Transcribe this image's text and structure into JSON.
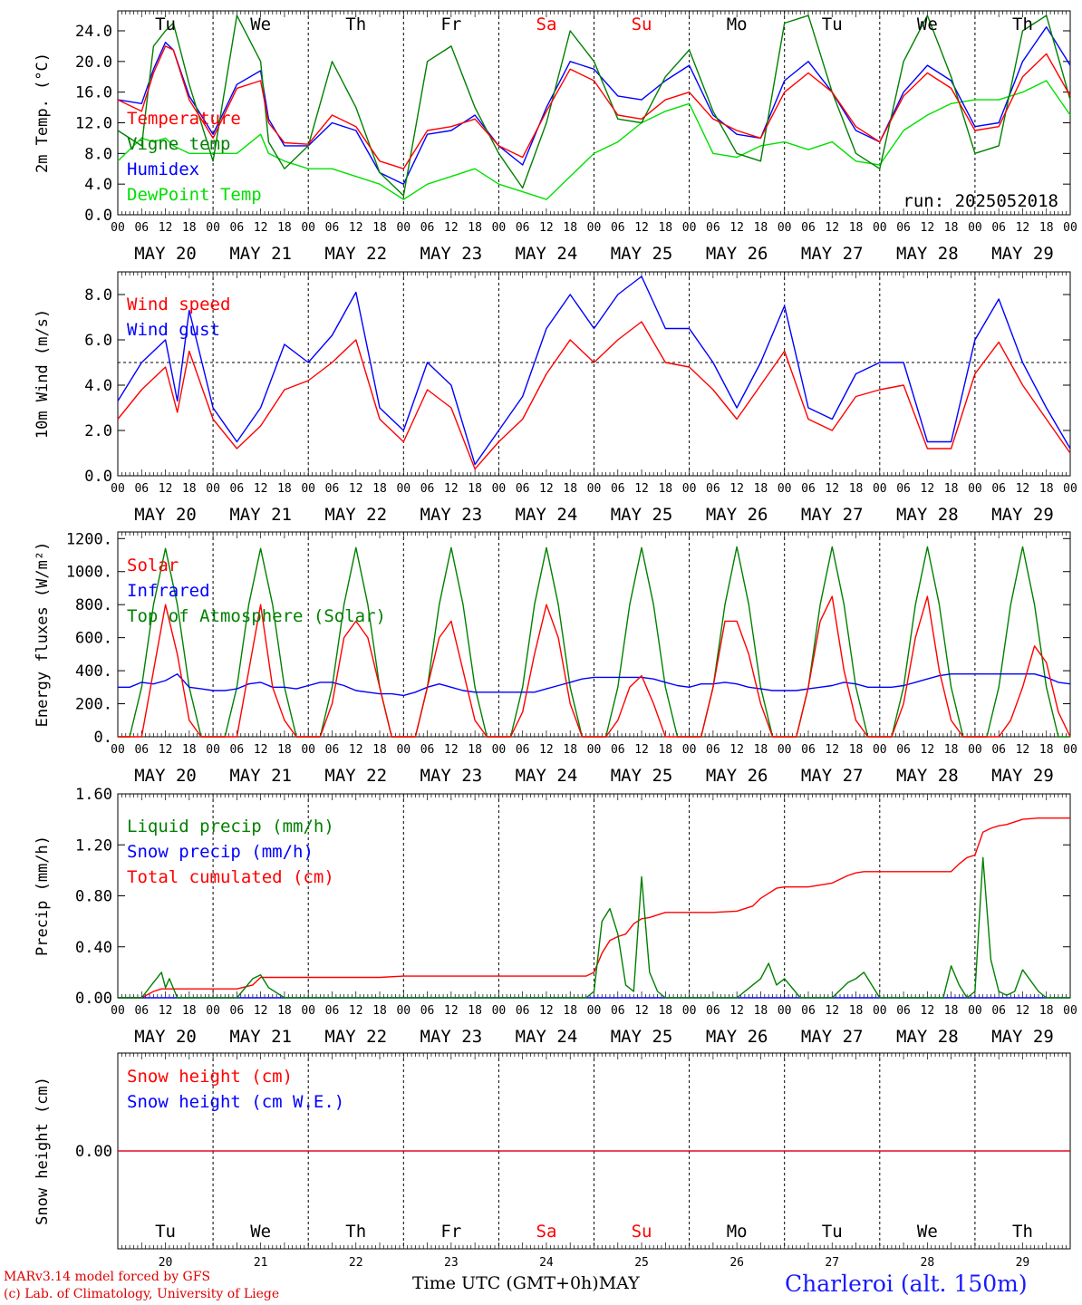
{
  "run_label": "run: 2025052018",
  "x_axis": {
    "hour_ticks": [
      "00",
      "06",
      "12",
      "18"
    ],
    "date_labels": [
      "MAY 20",
      "MAY 21",
      "MAY 22",
      "MAY 23",
      "MAY 24",
      "MAY 25",
      "MAY 26",
      "MAY 27",
      "MAY 28",
      "MAY 29"
    ],
    "weekdays": [
      "Tu",
      "We",
      "Th",
      "Fr",
      "Sa",
      "Su",
      "Mo",
      "Tu",
      "We",
      "Th"
    ],
    "weekday_colors": [
      "#000000",
      "#000000",
      "#000000",
      "#000000",
      "#ff0000",
      "#ff0000",
      "#000000",
      "#000000",
      "#000000",
      "#000000"
    ],
    "day_numbers": [
      "20",
      "21",
      "22",
      "23",
      "24",
      "25",
      "26",
      "27",
      "28",
      "29"
    ],
    "title": "Time UTC (GMT+0h)",
    "month": "MAY"
  },
  "footer": {
    "model": "MARv3.14 model forced by GFS",
    "credit": "(c) Lab. of Climatology, University of Liege",
    "station": "Charleroi (alt. 150m)"
  },
  "chart_data": [
    {
      "type": "line",
      "ylabel": "2m Temp. (°C)",
      "ylim": [
        0,
        26.6
      ],
      "yticks": [
        "0.0",
        "4.0",
        "8.0",
        "12.0",
        "16.0",
        "20.0",
        "24.0"
      ],
      "ytick_values": [
        0,
        4,
        8,
        12,
        16,
        20,
        24
      ],
      "legend": "top-left",
      "x_hours": [
        0,
        6,
        9,
        12,
        14,
        18,
        24,
        30,
        36,
        38,
        42,
        48,
        54,
        60,
        66,
        72,
        78,
        84,
        90,
        96,
        102,
        108,
        114,
        120,
        126,
        132,
        138,
        144,
        150,
        156,
        162,
        168,
        174,
        180,
        186,
        192,
        198,
        204,
        210,
        216,
        222,
        228,
        234,
        240
      ],
      "series": [
        {
          "name": "Temperature",
          "color": "#ff0000",
          "values": [
            15.0,
            13.5,
            18.5,
            22.0,
            21.5,
            15.0,
            10.0,
            16.5,
            17.5,
            12.0,
            9.4,
            9.2,
            13.0,
            11.5,
            7.0,
            6.0,
            11.0,
            11.5,
            12.5,
            9.0,
            7.5,
            13.5,
            19.0,
            17.5,
            13.0,
            12.5,
            15.0,
            16.0,
            12.5,
            11.0,
            10.0,
            16.0,
            18.5,
            16.0,
            11.5,
            9.5,
            15.5,
            18.5,
            16.5,
            11.0,
            11.5,
            18.0,
            21.0,
            15.5
          ]
        },
        {
          "name": "Vigne temp",
          "color": "#008000",
          "values": [
            11.0,
            9.0,
            22.0,
            24.0,
            25.0,
            17.0,
            7.0,
            26.0,
            20.0,
            9.5,
            6.0,
            9.0,
            20.0,
            14.0,
            5.5,
            2.5,
            20.0,
            22.0,
            14.0,
            8.0,
            3.5,
            12.0,
            24.0,
            20.0,
            12.5,
            12.0,
            18.0,
            21.5,
            13.5,
            8.0,
            7.0,
            25.0,
            26.0,
            16.0,
            8.0,
            6.0,
            20.0,
            26.0,
            18.0,
            8.0,
            9.0,
            24.0,
            26.0,
            15.0
          ]
        },
        {
          "name": "Humidex",
          "color": "#0000ff",
          "values": [
            15.0,
            14.5,
            19.0,
            22.5,
            21.5,
            15.5,
            10.5,
            17.0,
            18.8,
            12.5,
            9.0,
            9.0,
            12.0,
            11.0,
            5.5,
            4.0,
            10.5,
            11.0,
            13.0,
            9.0,
            6.5,
            14.0,
            20.0,
            19.0,
            15.5,
            15.0,
            17.5,
            19.5,
            13.0,
            10.5,
            10.0,
            17.5,
            20.0,
            16.0,
            11.0,
            9.5,
            16.0,
            19.5,
            17.5,
            11.5,
            12.0,
            20.0,
            24.5,
            19.5
          ]
        },
        {
          "name": "DewPoint Temp",
          "color": "#00e000",
          "values": [
            7.0,
            10.0,
            9.5,
            10.0,
            9.0,
            8.0,
            8.0,
            8.0,
            10.5,
            8.0,
            7.0,
            6.0,
            6.0,
            5.0,
            4.0,
            2.0,
            4.0,
            5.0,
            6.0,
            4.0,
            3.0,
            2.0,
            5.0,
            8.0,
            9.5,
            12.0,
            13.5,
            14.5,
            8.0,
            7.5,
            9.0,
            9.5,
            8.5,
            9.5,
            7.0,
            6.5,
            11.0,
            13.0,
            14.5,
            15.0,
            15.0,
            16.0,
            17.5,
            13.0
          ]
        }
      ]
    },
    {
      "type": "line",
      "ylabel": "10m Wind (m/s)",
      "ylim": [
        0,
        9.0
      ],
      "yticks": [
        "0.0",
        "2.0",
        "4.0",
        "6.0",
        "8.0"
      ],
      "ytick_values": [
        0,
        2,
        4,
        6,
        8
      ],
      "reference_line": 5.0,
      "legend": "top-left",
      "x_hours": [
        0,
        6,
        12,
        15,
        18,
        24,
        30,
        36,
        42,
        48,
        54,
        60,
        66,
        72,
        78,
        84,
        90,
        96,
        102,
        108,
        114,
        120,
        126,
        132,
        138,
        144,
        150,
        156,
        162,
        168,
        174,
        180,
        186,
        192,
        198,
        204,
        210,
        216,
        222,
        228,
        234,
        240
      ],
      "series": [
        {
          "name": "Wind speed",
          "color": "#ff0000",
          "values": [
            2.5,
            3.8,
            4.8,
            2.8,
            5.5,
            2.5,
            1.2,
            2.2,
            3.8,
            4.2,
            5.0,
            6.0,
            2.5,
            1.5,
            3.8,
            3.0,
            0.3,
            1.5,
            2.5,
            4.5,
            6.0,
            5.0,
            6.0,
            6.8,
            5.0,
            4.8,
            3.8,
            2.5,
            4.0,
            5.5,
            2.5,
            2.0,
            3.5,
            3.8,
            4.0,
            1.2,
            1.2,
            4.5,
            5.9,
            4.0,
            2.5,
            1.0
          ]
        },
        {
          "name": "Wind gust",
          "color": "#0000ff",
          "values": [
            3.3,
            5.0,
            6.0,
            3.3,
            7.3,
            3.0,
            1.5,
            3.0,
            5.8,
            5.0,
            6.2,
            8.1,
            3.0,
            2.0,
            5.0,
            4.0,
            0.5,
            2.0,
            3.5,
            6.5,
            8.0,
            6.5,
            8.0,
            8.8,
            6.5,
            6.5,
            5.0,
            3.0,
            5.0,
            7.5,
            3.0,
            2.5,
            4.5,
            5.0,
            5.0,
            1.5,
            1.5,
            6.0,
            7.8,
            5.0,
            3.0,
            1.2
          ]
        }
      ]
    },
    {
      "type": "line",
      "ylabel": "Energy fluxes (W/m²)",
      "ylim": [
        0,
        1240
      ],
      "yticks": [
        "0.",
        "200.",
        "400.",
        "600.",
        "800.",
        "1000.",
        "1200."
      ],
      "ytick_values": [
        0,
        200,
        400,
        600,
        800,
        1000,
        1200
      ],
      "legend": "top-left",
      "x_hours": [
        0,
        3,
        6,
        9,
        12,
        15,
        18,
        21,
        24,
        27,
        30,
        33,
        36,
        39,
        42,
        45,
        48,
        51,
        54,
        57,
        60,
        63,
        66,
        69,
        72,
        75,
        78,
        81,
        84,
        87,
        90,
        93,
        96,
        99,
        102,
        105,
        108,
        111,
        114,
        117,
        120,
        123,
        126,
        129,
        132,
        135,
        138,
        141,
        144,
        147,
        150,
        153,
        156,
        159,
        162,
        165,
        168,
        171,
        174,
        177,
        180,
        183,
        186,
        189,
        192,
        195,
        198,
        201,
        204,
        207,
        210,
        213,
        216,
        219,
        222,
        225,
        228,
        231,
        234,
        237,
        240
      ],
      "series": [
        {
          "name": "Solar",
          "color": "#ff0000",
          "values": [
            0,
            0,
            0,
            400,
            800,
            500,
            100,
            0,
            0,
            0,
            0,
            400,
            800,
            300,
            100,
            0,
            0,
            0,
            200,
            600,
            700,
            600,
            300,
            0,
            0,
            0,
            300,
            600,
            700,
            400,
            100,
            0,
            0,
            0,
            150,
            500,
            800,
            600,
            200,
            0,
            0,
            0,
            100,
            300,
            370,
            200,
            0,
            0,
            0,
            0,
            300,
            700,
            700,
            500,
            200,
            0,
            0,
            0,
            300,
            700,
            850,
            400,
            100,
            0,
            0,
            0,
            200,
            600,
            850,
            400,
            100,
            0,
            0,
            0,
            0,
            100,
            300,
            550,
            450,
            150,
            0
          ]
        },
        {
          "name": "Infrared",
          "color": "#0000ff",
          "values": [
            300,
            300,
            330,
            320,
            340,
            380,
            300,
            290,
            280,
            280,
            290,
            320,
            330,
            300,
            300,
            290,
            310,
            330,
            330,
            310,
            280,
            270,
            260,
            260,
            250,
            270,
            300,
            320,
            300,
            280,
            270,
            270,
            270,
            270,
            270,
            270,
            290,
            310,
            330,
            350,
            360,
            360,
            360,
            360,
            360,
            350,
            330,
            310,
            300,
            320,
            320,
            330,
            320,
            300,
            290,
            280,
            280,
            280,
            290,
            300,
            310,
            330,
            320,
            300,
            300,
            300,
            310,
            330,
            350,
            370,
            380,
            380,
            380,
            380,
            380,
            380,
            380,
            380,
            360,
            330,
            320
          ]
        },
        {
          "name": "Top of Atmosphere (Solar)",
          "color": "#008000",
          "values": [
            0,
            0,
            300,
            800,
            1140,
            800,
            300,
            0,
            0,
            0,
            300,
            800,
            1140,
            800,
            300,
            0,
            0,
            0,
            300,
            800,
            1145,
            800,
            300,
            0,
            0,
            0,
            300,
            800,
            1145,
            800,
            300,
            0,
            0,
            0,
            300,
            800,
            1145,
            800,
            300,
            0,
            0,
            0,
            300,
            800,
            1145,
            800,
            300,
            0,
            0,
            0,
            300,
            800,
            1150,
            800,
            300,
            0,
            0,
            0,
            300,
            800,
            1150,
            800,
            300,
            0,
            0,
            0,
            300,
            800,
            1150,
            800,
            300,
            0,
            0,
            0,
            300,
            800,
            1150,
            800,
            300,
            0,
            0
          ]
        }
      ]
    },
    {
      "type": "line",
      "ylabel": "Precip (mm/h)",
      "ylim": [
        0,
        1.6
      ],
      "yticks": [
        "0.00",
        "0.40",
        "0.80",
        "1.20",
        "1.60"
      ],
      "ytick_values": [
        0,
        0.4,
        0.8,
        1.2,
        1.6
      ],
      "legend": "top-left",
      "x_hours": [
        0,
        6,
        9,
        11,
        12,
        13,
        15,
        24,
        30,
        34,
        36,
        38,
        42,
        48,
        60,
        66,
        72,
        96,
        118,
        120,
        122,
        124,
        126,
        128,
        130,
        132,
        134,
        136,
        138,
        140,
        144,
        150,
        156,
        160,
        162,
        164,
        166,
        168,
        172,
        174,
        180,
        184,
        186,
        188,
        190,
        192,
        198,
        204,
        208,
        210,
        212,
        214,
        216,
        218,
        220,
        222,
        224,
        226,
        228,
        232,
        234,
        236,
        240
      ],
      "series": [
        {
          "name": "Liquid precip (mm/h)",
          "color": "#008000",
          "values": [
            0,
            0,
            0.12,
            0.2,
            0.08,
            0.15,
            0,
            0,
            0,
            0.15,
            0.18,
            0.08,
            0,
            0,
            0,
            0,
            0,
            0,
            0,
            0.05,
            0.6,
            0.7,
            0.5,
            0.1,
            0.05,
            0.95,
            0.2,
            0.05,
            0,
            0,
            0,
            0,
            0,
            0.1,
            0.15,
            0.27,
            0.1,
            0.15,
            0,
            0,
            0,
            0.12,
            0.15,
            0.2,
            0.1,
            0,
            0,
            0,
            0,
            0.25,
            0.1,
            0,
            0.05,
            1.1,
            0.3,
            0.05,
            0.02,
            0.05,
            0.22,
            0.05,
            0,
            0,
            0
          ]
        },
        {
          "name": "Snow precip (mm/h)",
          "color": "#0000ff",
          "values": [
            0,
            0,
            0,
            0,
            0,
            0,
            0,
            0,
            0,
            0,
            0,
            0,
            0,
            0,
            0,
            0,
            0,
            0,
            0,
            0,
            0,
            0,
            0,
            0,
            0,
            0,
            0,
            0,
            0,
            0,
            0,
            0,
            0,
            0,
            0,
            0,
            0,
            0,
            0,
            0,
            0,
            0,
            0,
            0,
            0,
            0,
            0,
            0,
            0,
            0,
            0,
            0,
            0,
            0,
            0,
            0,
            0,
            0,
            0,
            0,
            0,
            0,
            0
          ]
        },
        {
          "name": "Total cumulated (cm)",
          "color": "#ff0000",
          "values": [
            0,
            0,
            0.05,
            0.07,
            0.07,
            0.07,
            0.07,
            0.07,
            0.07,
            0.1,
            0.16,
            0.16,
            0.16,
            0.16,
            0.16,
            0.16,
            0.17,
            0.17,
            0.17,
            0.2,
            0.35,
            0.45,
            0.48,
            0.5,
            0.58,
            0.62,
            0.63,
            0.65,
            0.67,
            0.67,
            0.67,
            0.67,
            0.68,
            0.72,
            0.78,
            0.82,
            0.86,
            0.87,
            0.87,
            0.87,
            0.9,
            0.96,
            0.98,
            0.99,
            0.99,
            0.99,
            0.99,
            0.99,
            0.99,
            0.99,
            1.05,
            1.1,
            1.12,
            1.3,
            1.33,
            1.35,
            1.36,
            1.38,
            1.4,
            1.41,
            1.41,
            1.41,
            1.41
          ]
        }
      ]
    },
    {
      "type": "line",
      "ylabel": "Snow height (cm)",
      "ylim": [
        -1,
        1
      ],
      "yticks": [
        "0.00"
      ],
      "ytick_values": [
        0
      ],
      "legend": "top-left",
      "x_hours": [
        0,
        240
      ],
      "series": [
        {
          "name": "Snow height (cm)",
          "color": "#ff0000",
          "values": [
            0,
            0
          ]
        },
        {
          "name": "Snow height (cm W.E.)",
          "color": "#0000ff",
          "values": [
            0,
            0
          ]
        }
      ]
    }
  ]
}
